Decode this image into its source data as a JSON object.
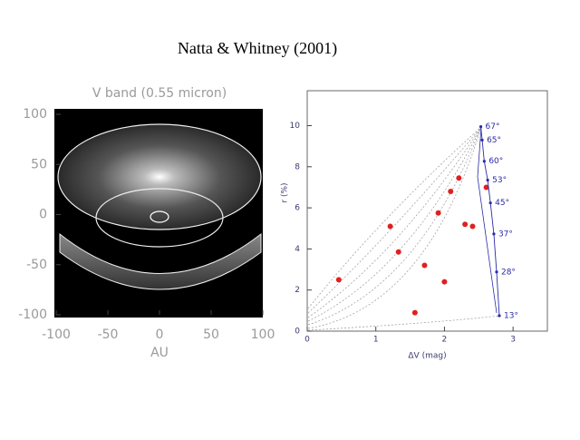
{
  "title": "Natta & Whitney (2001)",
  "chart_data": [
    {
      "type": "image",
      "title": "V band (0.55 micron)",
      "xlabel": "AU",
      "xlim": [
        -100,
        100
      ],
      "ylim": [
        -100,
        100
      ],
      "xticks": [
        -100,
        -50,
        0,
        50,
        100
      ],
      "yticks": [
        -100,
        -50,
        0,
        50,
        100
      ]
    },
    {
      "type": "scatter",
      "xlabel": "ΔV (mag)",
      "ylabel": "r (%)",
      "xlim": [
        0,
        3.5
      ],
      "ylim": [
        0,
        11.7
      ],
      "xticks": [
        0,
        1,
        2,
        3
      ],
      "yticks": [
        0,
        2,
        4,
        6,
        8,
        10
      ],
      "series": [
        {
          "color": "#e02020",
          "x": [
            0.46,
            1.21,
            1.33,
            1.57,
            1.71,
            1.91,
            2.0,
            2.09,
            2.21,
            2.3,
            2.41,
            2.61
          ],
          "values": [
            2.5,
            5.1,
            3.85,
            0.9,
            3.2,
            5.75,
            2.4,
            6.8,
            7.45,
            5.2,
            5.1,
            7.0
          ]
        },
        {
          "color": "#2a2aa8",
          "x": [
            2.53,
            2.55,
            2.58,
            2.63,
            2.67,
            2.72,
            2.76,
            2.8
          ],
          "values": [
            9.95,
            9.3,
            8.27,
            7.35,
            6.24,
            4.73,
            2.88,
            0.75
          ],
          "point_labels": [
            "67°",
            "65°",
            "60°",
            "53°",
            "45°",
            "37°",
            "28°",
            "13°"
          ]
        }
      ]
    }
  ]
}
